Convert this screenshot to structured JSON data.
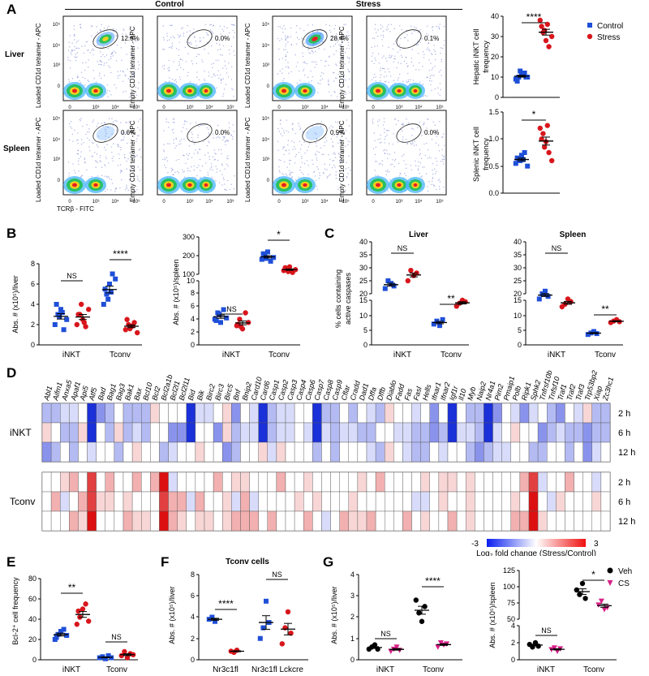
{
  "panel_letters": [
    "A",
    "B",
    "C",
    "D",
    "E",
    "F",
    "G"
  ],
  "panelA": {
    "col_headers": [
      "Control",
      "Stress"
    ],
    "row_labels": [
      "Liver",
      "Spleen"
    ],
    "x_axis": "TCRβ - FITC",
    "y_axis_loaded": "Loaded CD1d tetramer - APC",
    "y_axis_empty": "Empty CD1d tetramer - APC",
    "gates": [
      [
        "12.6%",
        "0.0%",
        "28.4%",
        "0.1%"
      ],
      [
        "0.6%",
        "0.0%",
        "0.9%",
        "0.0%"
      ]
    ],
    "ticks": [
      "0",
      "10³",
      "10⁴",
      "10⁵"
    ]
  },
  "chart_data": [
    {
      "type": "scatter",
      "title": "",
      "ylabel": "Hepatic iNKT cell frequency",
      "ylim": [
        0,
        40
      ],
      "yticks": [
        "0",
        "10",
        "20",
        "30",
        "40"
      ],
      "series": [
        {
          "name": "Control",
          "values": [
            9,
            10,
            11,
            12,
            10,
            8,
            13,
            11,
            10
          ]
        },
        {
          "name": "Stress",
          "values": [
            38,
            32,
            28,
            25,
            30,
            35,
            33,
            36
          ]
        }
      ],
      "significance": "****"
    },
    {
      "type": "scatter",
      "title": "",
      "ylabel": "Splenic iNKT cell frequency",
      "ylim": [
        0,
        1.5
      ],
      "yticks": [
        "0.0",
        "0.5",
        "1.0",
        "1.5"
      ],
      "series": [
        {
          "name": "Control",
          "values": [
            0.55,
            0.6,
            0.7,
            0.75,
            0.5,
            0.65,
            0.6,
            0.62
          ]
        },
        {
          "name": "Stress",
          "values": [
            1.2,
            1.1,
            0.95,
            0.75,
            0.6,
            1.0,
            0.85,
            1.25
          ]
        }
      ],
      "significance": "*"
    }
  ],
  "legendA": [
    "Control",
    "Stress"
  ],
  "panelB": {
    "liver_ylabel": "Abs. # (x10⁵)/liver",
    "spleen_ylabel": "Abs. # (x10⁵)/spleen",
    "liver_yticks": [
      "0",
      "2",
      "4",
      "6",
      "8"
    ],
    "spleen_yticks_top": [
      "100",
      "200",
      "300"
    ],
    "spleen_yticks_bottom": [
      "0",
      "2",
      "4",
      "6",
      "8",
      "10"
    ],
    "categories": [
      "iNKT",
      "Tconv"
    ],
    "sig_liver": [
      "NS",
      "****"
    ],
    "sig_spleen": [
      "NS",
      "*"
    ]
  },
  "panelC": {
    "ylabel": "% cells containing active caspases",
    "titles": [
      "Liver",
      "Spleen"
    ],
    "yticks_top": [
      "20",
      "25",
      "30",
      "35",
      "40"
    ],
    "yticks_bottom": [
      "0",
      "5",
      "10",
      "15"
    ],
    "categories": [
      "iNKT",
      "Tconv"
    ],
    "sig_liver": [
      "NS",
      "**"
    ],
    "sig_spleen": [
      "NS",
      "**"
    ]
  },
  "panelD": {
    "genes": [
      "Abl1",
      "Aifm1",
      "Anxa5",
      "Apaf1",
      "Api5",
      "Atf5",
      "Bad",
      "Bag1",
      "Bag3",
      "Bak1",
      "Bax",
      "Bcl10",
      "Bcl2",
      "Bcl2a1b",
      "Bcl2l1",
      "Bcl2l11",
      "Bid",
      "Bik",
      "Birc2",
      "Birc3",
      "Birc5",
      "Bnf",
      "Bnip2",
      "Card10",
      "Card6",
      "Casp1",
      "Casp2",
      "Casp3",
      "Casp4",
      "Casp6",
      "Casp7",
      "Casp8",
      "Casp9",
      "Cflar",
      "Cradd",
      "Dad1",
      "Dffa",
      "Dffb",
      "Diablo",
      "Fadd",
      "Fas",
      "Fasl",
      "Hells",
      "Ifnar1",
      "Ifnar2",
      "Igf1r",
      "Il10",
      "Myb",
      "Naip2",
      "Nr4a1",
      "Pim2",
      "Pmaip1",
      "Polb",
      "Ripk1",
      "Sphk2",
      "Tnfrsf10b",
      "Tnfsf10",
      "Traf1",
      "Traf2",
      "Traf3",
      "Trp53bp2",
      "Xiap",
      "Zc3hc1"
    ],
    "time_labels": [
      "2 h",
      "6 h",
      "12 h"
    ],
    "group_labels": [
      "iNKT",
      "Tconv"
    ],
    "colorbar_min": "-3",
    "colorbar_max": "3",
    "colorbar_label": "Log₂ fold change (Stress/Control)"
  },
  "panelE": {
    "ylabel": "Bcl-2⁺ cell frequency",
    "yticks": [
      "0",
      "20",
      "40",
      "60",
      "80"
    ],
    "categories": [
      "iNKT",
      "Tconv"
    ],
    "sig": [
      "**",
      "NS"
    ]
  },
  "panelF": {
    "title": "Tconv cells",
    "ylabel": "Abs. # (x10⁵)/liver",
    "yticks": [
      "0",
      "2",
      "4",
      "6",
      "8"
    ],
    "categories": [
      "Nr3c1fl",
      "Nr3c1fl Lckcre"
    ],
    "sig": [
      "****",
      "NS"
    ]
  },
  "panelG": {
    "ylabel_liver": "Abs. # (x10⁵)/liver",
    "ylabel_spleen": "Abs. # (x10⁵)/spleen",
    "yticks_liver": [
      "0",
      "1",
      "2",
      "3",
      "4"
    ],
    "yticks_spleen_top": [
      "50",
      "75",
      "100",
      "125"
    ],
    "yticks_spleen_bottom": [
      "0",
      "2",
      "4"
    ],
    "categories": [
      "iNKT",
      "Tconv"
    ],
    "sig_liver": [
      "NS",
      "****"
    ],
    "sig_spleen": [
      "NS",
      "*"
    ],
    "legend": [
      "Veh",
      "CS"
    ]
  },
  "colors": {
    "control": "#1f4fd8",
    "stress": "#d8161c",
    "veh": "#000000",
    "cs": "#d61f86"
  }
}
